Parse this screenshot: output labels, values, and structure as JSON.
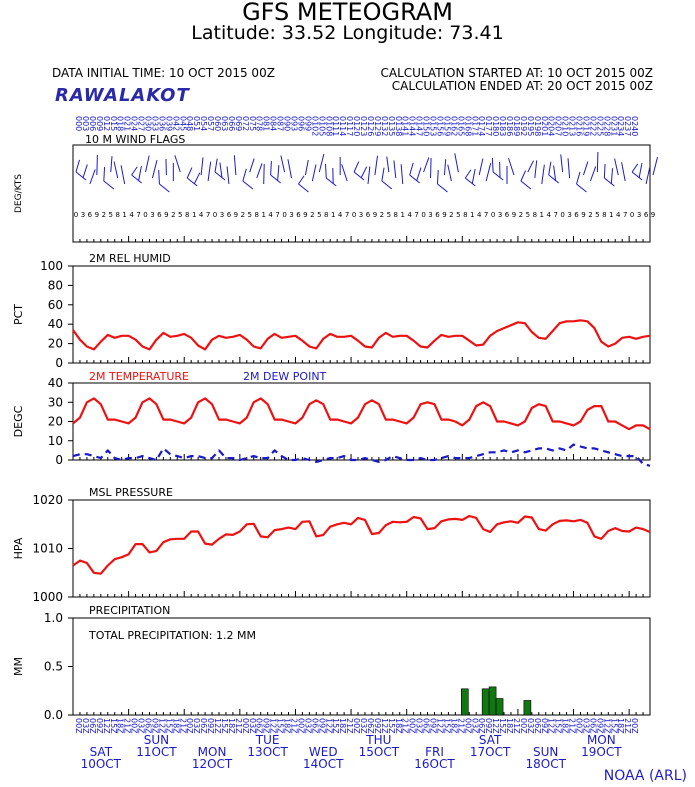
{
  "header": {
    "title": "GFS METEOGRAM",
    "subtitle": "Latitude: 33.52 Longitude:  73.41",
    "init_time": "DATA INITIAL TIME: 10 OCT 2015 00Z",
    "calc_started": "CALCULATION STARTED AT: 10 OCT 2015 00Z",
    "calc_ended": "CALCULATION ENDED AT: 20 OCT 2015 00Z",
    "station": "RAWALAKOT",
    "credit": "NOAA (ARL)"
  },
  "colors": {
    "red": "#ee1111",
    "blue": "#1a1acc",
    "green": "#117711",
    "axis": "#000000"
  },
  "days": [
    {
      "dow": "SAT",
      "date": "10OCT"
    },
    {
      "dow": "SUN",
      "date": "11OCT"
    },
    {
      "dow": "MON",
      "date": "12OCT"
    },
    {
      "dow": "TUE",
      "date": "13OCT"
    },
    {
      "dow": "WED",
      "date": "14OCT"
    },
    {
      "dow": "THU",
      "date": "15OCT"
    },
    {
      "dow": "FRI",
      "date": "16OCT"
    },
    {
      "dow": "SAT",
      "date": "17OCT"
    },
    {
      "dow": "SUN",
      "date": "18OCT"
    },
    {
      "dow": "MON",
      "date": "19OCT"
    }
  ],
  "hour_labels": [
    "00Z",
    "03Z",
    "06Z",
    "09Z",
    "12Z",
    "15Z",
    "18Z",
    "21Z"
  ],
  "chart_data": [
    {
      "type": "scatter",
      "title": "10 M  WIND FLAGS",
      "ylabel": "DEG/KTS",
      "x_unit": "forecast hour",
      "x_step": 3,
      "x_range": [
        0,
        240
      ],
      "hour_label_prefix": "0",
      "grid": false
    },
    {
      "type": "line",
      "title": "2M REL HUMID",
      "ylabel": "PCT",
      "ylim": [
        0,
        100
      ],
      "yticks": [
        0,
        20,
        40,
        60,
        80,
        100
      ],
      "x_unit": "forecast hour",
      "x_step": 3,
      "series": [
        {
          "color": "red",
          "values": [
            34,
            24,
            17,
            14,
            22,
            29,
            26,
            28,
            28,
            24,
            17,
            14,
            24,
            31,
            27,
            28,
            30,
            26,
            18,
            14,
            24,
            28,
            26,
            27,
            29,
            24,
            17,
            15,
            25,
            30,
            26,
            27,
            28,
            23,
            17,
            15,
            25,
            30,
            27,
            27,
            28,
            23,
            17,
            16,
            26,
            31,
            27,
            28,
            28,
            23,
            17,
            16,
            23,
            29,
            27,
            28,
            28,
            23,
            18,
            19,
            28,
            33,
            36,
            39,
            42,
            41,
            32,
            26,
            25,
            33,
            41,
            43,
            43,
            44,
            43,
            36,
            22,
            17,
            20,
            26,
            27,
            25,
            27,
            28
          ]
        }
      ]
    },
    {
      "type": "line",
      "title": "2M TEMPERATURE",
      "title2": "2M  DEW POINT",
      "ylabel": "DEGC",
      "ylim": [
        0,
        40
      ],
      "yticks": [
        0,
        10,
        20,
        30,
        40
      ],
      "x_unit": "forecast hour",
      "x_step": 3,
      "series": [
        {
          "name": "2M TEMPERATURE",
          "color": "red",
          "dash": false,
          "values": [
            19,
            22,
            30,
            32,
            29,
            21,
            21,
            20,
            19,
            22,
            30,
            32,
            29,
            21,
            21,
            20,
            19,
            22,
            30,
            32,
            29,
            21,
            21,
            20,
            19,
            22,
            30,
            32,
            29,
            21,
            21,
            20,
            19,
            22,
            29,
            31,
            29,
            21,
            21,
            20,
            19,
            22,
            29,
            31,
            29,
            21,
            21,
            20,
            19,
            22,
            29,
            30,
            29,
            21,
            21,
            20,
            18,
            21,
            28,
            30,
            28,
            20,
            20,
            19,
            18,
            20,
            27,
            29,
            28,
            20,
            20,
            19,
            18,
            20,
            26,
            28,
            28,
            20,
            20,
            18,
            16,
            18,
            18,
            16
          ]
        },
        {
          "name": "2M  DEW POINT",
          "color": "blue",
          "dash": true,
          "values": [
            2,
            3,
            3,
            2,
            1,
            5,
            1,
            0,
            1,
            1,
            2,
            1,
            0,
            6,
            3,
            2,
            1,
            2,
            2,
            1,
            1,
            5,
            1,
            1,
            0,
            1,
            2,
            1,
            1,
            5,
            2,
            0,
            0,
            1,
            0,
            -1,
            0,
            1,
            1,
            2,
            0,
            0,
            1,
            0,
            -1,
            0,
            2,
            1,
            0,
            0,
            1,
            0,
            0,
            1,
            2,
            1,
            1,
            1,
            2,
            3,
            4,
            4,
            5,
            4,
            5,
            4,
            5,
            6,
            6,
            5,
            6,
            5,
            8,
            7,
            6,
            6,
            5,
            4,
            3,
            2,
            2,
            2,
            -2,
            -3
          ]
        }
      ]
    },
    {
      "type": "line",
      "title": "MSL PRESSURE",
      "ylabel": "HPA",
      "ylim": [
        1000,
        1020
      ],
      "yticks": [
        1000,
        1010,
        1020
      ],
      "x_unit": "forecast hour",
      "x_step": 3,
      "series": [
        {
          "color": "red",
          "values": [
            1006.5,
            1007.5,
            1007,
            1005,
            1004.8,
            1006.5,
            1007.8,
            1008.2,
            1008.8,
            1010.9,
            1010.9,
            1009.2,
            1009.5,
            1011.3,
            1011.9,
            1012,
            1012,
            1013.5,
            1013.5,
            1011,
            1010.8,
            1012,
            1012.9,
            1012.8,
            1013.5,
            1015,
            1015.1,
            1012.5,
            1012.3,
            1013.8,
            1014,
            1014.3,
            1014,
            1015.5,
            1015.6,
            1012.5,
            1012.8,
            1014.5,
            1015,
            1015.3,
            1015,
            1016.3,
            1015.9,
            1013,
            1013.2,
            1014.8,
            1015.5,
            1015.4,
            1015.5,
            1016.5,
            1016.2,
            1014,
            1014.2,
            1015.6,
            1016,
            1016.1,
            1015.9,
            1016.7,
            1016.3,
            1014,
            1013.4,
            1015,
            1015.4,
            1015.6,
            1015.3,
            1016.6,
            1016.4,
            1014,
            1013.7,
            1015,
            1015.7,
            1015.8,
            1015.6,
            1015.9,
            1015.3,
            1012.5,
            1012,
            1013.6,
            1014.2,
            1013.6,
            1013.5,
            1014.3,
            1014,
            1013.4
          ]
        }
      ]
    },
    {
      "type": "bar",
      "title": "PRECIPITATION",
      "annotation": "TOTAL PRECIPITATION:   1.2 MM",
      "ylabel": "MM",
      "ylim": [
        0,
        1
      ],
      "yticks": [
        0.0,
        0.5,
        1.0
      ],
      "x_unit": "forecast hour",
      "bars": [
        {
          "x": 168,
          "value": 0.27
        },
        {
          "x": 177,
          "value": 0.27
        },
        {
          "x": 180,
          "value": 0.29
        },
        {
          "x": 183,
          "value": 0.17
        },
        {
          "x": 195,
          "value": 0.15
        }
      ]
    }
  ]
}
